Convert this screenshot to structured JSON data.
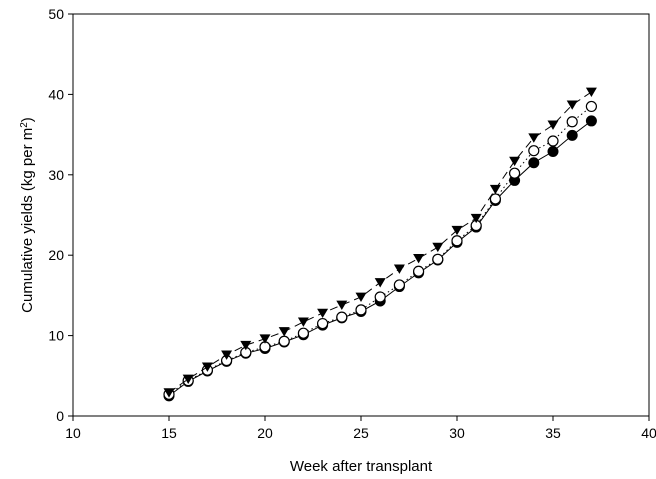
{
  "chart_data": {
    "type": "line",
    "title": "",
    "xlabel": "Week after transplant",
    "ylabel_prefix": "Cumulative yields (kg per m",
    "ylabel_sup": "2",
    "ylabel_suffix": ")",
    "xlim": [
      10,
      40
    ],
    "ylim": [
      0,
      50
    ],
    "xticks": [
      10,
      15,
      20,
      25,
      30,
      35,
      40
    ],
    "yticks": [
      0,
      10,
      20,
      30,
      40,
      50
    ],
    "grid": false,
    "legend": "none",
    "x": [
      15,
      16,
      17,
      18,
      19,
      20,
      21,
      22,
      23,
      24,
      25,
      26,
      27,
      28,
      29,
      30,
      31,
      32,
      33,
      34,
      35,
      36,
      37
    ],
    "series": [
      {
        "marker": "filled-circle",
        "line_style": "solid",
        "color": "#000000",
        "values": [
          2.5,
          4.3,
          5.6,
          6.8,
          7.8,
          8.4,
          9.2,
          10.1,
          11.3,
          12.2,
          13.0,
          14.3,
          16.1,
          17.8,
          19.4,
          21.6,
          23.5,
          26.8,
          29.3,
          31.5,
          32.9,
          34.9,
          36.7
        ]
      },
      {
        "marker": "open-circle",
        "line_style": "dotted",
        "color": "#000000",
        "values": [
          2.7,
          4.4,
          5.7,
          6.9,
          7.9,
          8.6,
          9.3,
          10.3,
          11.5,
          12.3,
          13.2,
          14.8,
          16.3,
          18.0,
          19.5,
          21.8,
          23.7,
          27.0,
          30.2,
          33.0,
          34.2,
          36.6,
          38.5
        ]
      },
      {
        "marker": "filled-triangle-down",
        "line_style": "dashed",
        "color": "#000000",
        "values": [
          2.9,
          4.6,
          6.1,
          7.6,
          8.8,
          9.6,
          10.5,
          11.7,
          12.8,
          13.8,
          14.8,
          16.6,
          18.3,
          19.6,
          21.0,
          23.1,
          24.6,
          28.2,
          31.7,
          34.6,
          36.2,
          38.7,
          40.3
        ]
      }
    ]
  }
}
